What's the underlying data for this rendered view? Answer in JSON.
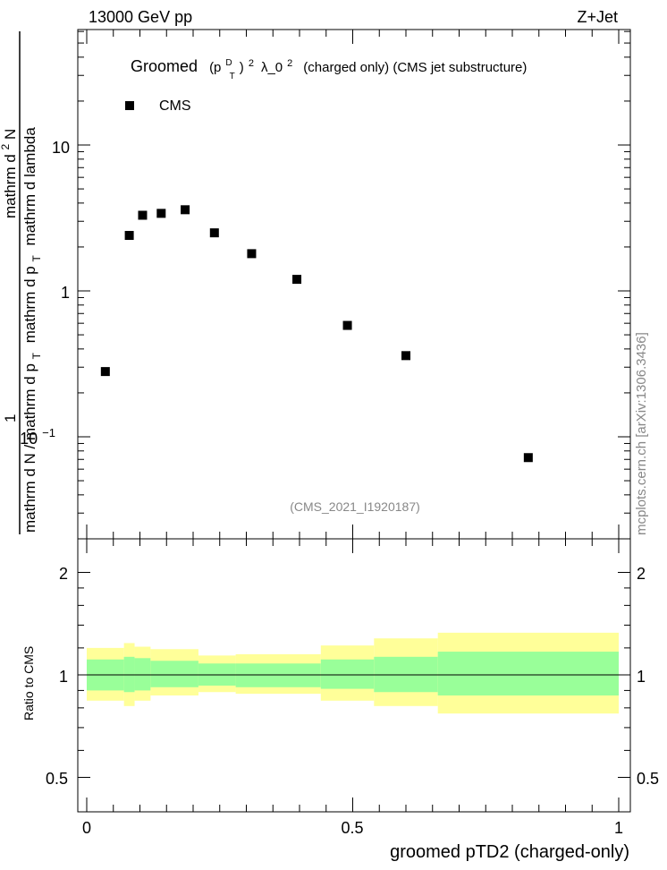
{
  "header": {
    "left": "13000 GeV pp",
    "right": "Z+Jet"
  },
  "title": {
    "prefix": "Groomed",
    "obs_p": "(p",
    "obs_sup": "D",
    "obs_sub": "T",
    "obs_close": ")",
    "obs_exp": "2",
    "obs_lambda": "λ_0",
    "obs_lambda_exp": "2",
    "suffix": "(charged only) (CMS jet substructure)"
  },
  "legend": {
    "label": "CMS"
  },
  "watermark": "(CMS_2021_I1920187)",
  "side_label": "mcplots.cern.ch [arXiv:1306.3436]",
  "ylabel_top": {
    "num_a": "1",
    "num_b": "mathrm d N / mathrm d p",
    "num_b_sub": "T",
    "den_a": "mathrm d",
    "den_a_sup": "2",
    "den_a_rest": "N",
    "den_b": "mathrm d p",
    "den_b_sub": "T",
    "den_b_rest": "mathrm d lambda"
  },
  "ylabel_bottom": "Ratio to CMS",
  "xlabel": "groomed pTD2 (charged-only)",
  "top_ticks": [
    "10",
    "1",
    "10",
    "−1"
  ],
  "ratio_ticks": [
    "2",
    "1",
    "0.5"
  ],
  "x_ticks": [
    "0",
    "0.5",
    "1"
  ],
  "colors": {
    "band_outer": "#ffff99",
    "band_inner": "#99ff99",
    "marker": "#000000"
  },
  "chart_data": {
    "type": "scatter",
    "title": "Groomed (p_T^D)^2 λ_0^2 (charged only) (CMS jet substructure)",
    "xlabel": "groomed pTD2 (charged-only)",
    "ylabel": "1/N dN/dp_T / d2N/(dp_T dλ)",
    "xlim": [
      0,
      1
    ],
    "ylim_log": [
      0.02,
      60
    ],
    "ratio_ylim_log": [
      0.4,
      2.5
    ],
    "series": [
      {
        "name": "CMS",
        "x": [
          0.035,
          0.08,
          0.105,
          0.14,
          0.185,
          0.24,
          0.31,
          0.395,
          0.49,
          0.6,
          0.83
        ],
        "y": [
          0.28,
          2.4,
          3.3,
          3.4,
          3.6,
          2.5,
          1.8,
          1.2,
          0.58,
          0.36,
          0.072
        ]
      }
    ],
    "ratio_bins": {
      "edges": [
        0,
        0.07,
        0.09,
        0.12,
        0.21,
        0.28,
        0.44,
        0.54,
        0.66,
        1.0
      ],
      "inner_low": [
        0.9,
        0.89,
        0.9,
        0.92,
        0.93,
        0.92,
        0.91,
        0.89,
        0.87
      ],
      "inner_high": [
        1.11,
        1.13,
        1.12,
        1.1,
        1.08,
        1.08,
        1.11,
        1.13,
        1.17
      ],
      "outer_low": [
        0.84,
        0.81,
        0.84,
        0.87,
        0.89,
        0.88,
        0.84,
        0.81,
        0.77
      ],
      "outer_high": [
        1.2,
        1.24,
        1.21,
        1.19,
        1.14,
        1.15,
        1.22,
        1.28,
        1.33
      ]
    }
  }
}
